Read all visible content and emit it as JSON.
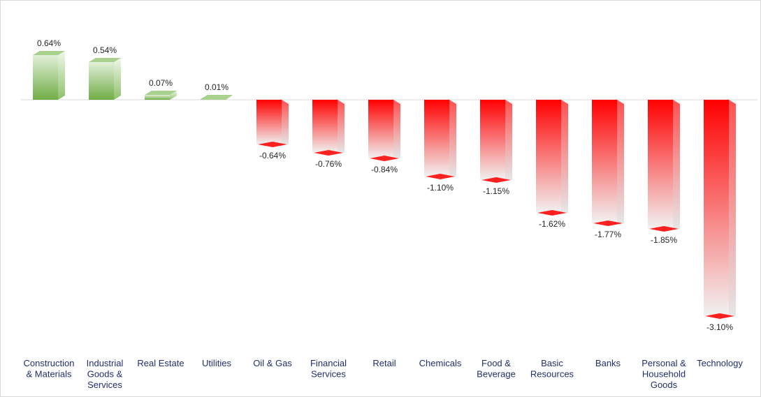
{
  "chart_data": {
    "type": "bar",
    "title": "",
    "xlabel": "",
    "ylabel": "",
    "categories": [
      [
        "Construction",
        "& Materials"
      ],
      [
        "Industrial",
        "Goods &",
        "Services"
      ],
      [
        "Real Estate"
      ],
      [
        "Utilities"
      ],
      [
        "Oil & Gas"
      ],
      [
        "Financial",
        "Services"
      ],
      [
        "Retail"
      ],
      [
        "Chemicals"
      ],
      [
        "Food &",
        "Beverage"
      ],
      [
        "Basic",
        "Resources"
      ],
      [
        "Banks"
      ],
      [
        "Personal &",
        "Household",
        "Goods"
      ],
      [
        "Technology"
      ]
    ],
    "values": [
      0.64,
      0.54,
      0.07,
      0.01,
      -0.64,
      -0.76,
      -0.84,
      -1.1,
      -1.15,
      -1.62,
      -1.77,
      -1.85,
      -3.1
    ],
    "data_labels": [
      "0.64%",
      "0.54%",
      "0.07%",
      "0.01%",
      "-0.64%",
      "-0.76%",
      "-0.84%",
      "-1.10%",
      "-1.15%",
      "-1.62%",
      "-1.77%",
      "-1.85%",
      "-3.10%"
    ],
    "ylim": [
      -3.1,
      0.64
    ],
    "grid": false,
    "legend": "none",
    "colors": {
      "positive_front": "#70ad47",
      "positive_light": "#e2f0d9",
      "positive_top": "#a9d18e",
      "negative_front": "#ff0000",
      "negative_light": "#f2f2f2",
      "negative_cap": "#ff2020",
      "axis_line": "#d9d9d9",
      "category_text": "#1f2f6f"
    }
  }
}
